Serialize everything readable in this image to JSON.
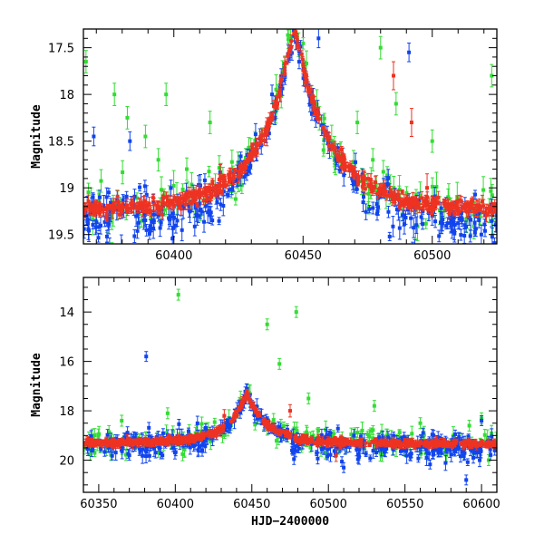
{
  "chart_data": [
    {
      "type": "scatter",
      "panel": "top",
      "xlabel": "",
      "ylabel": "Magnitude",
      "xlim": [
        60365,
        60525
      ],
      "ylim": [
        19.6,
        17.3
      ],
      "y_inverted": true,
      "x_major_ticks": [
        60400,
        60450,
        60500
      ],
      "x_tick_labels": [
        "60400",
        "60450",
        "60500"
      ],
      "y_major_ticks": [
        17.5,
        18,
        18.5,
        19,
        19.5
      ],
      "y_tick_labels": [
        "17.5",
        "18",
        "18.5",
        "19",
        "19.5"
      ],
      "grid": false,
      "legend": "none",
      "peak": {
        "x": 60447,
        "y": 17.5
      },
      "baseline": {
        "left": 19.28,
        "right": 19.25
      },
      "colors": {
        "red": "#ee3322",
        "green": "#33dd33",
        "blue": "#1144ee"
      },
      "outliers": {
        "green": [
          [
            60366,
            17.65
          ],
          [
            60377,
            18.0
          ],
          [
            60382,
            18.25
          ],
          [
            60389,
            18.45
          ],
          [
            60397,
            18.0
          ],
          [
            60405,
            18.8
          ],
          [
            60414,
            18.3
          ],
          [
            60419,
            18.9
          ],
          [
            60471,
            18.3
          ],
          [
            60480,
            17.5
          ],
          [
            60486,
            18.1
          ],
          [
            60500,
            18.5
          ],
          [
            60523,
            17.8
          ],
          [
            60394,
            18.7
          ],
          [
            60477,
            18.7
          ]
        ],
        "blue": [
          [
            60369,
            18.45
          ],
          [
            60383,
            18.5
          ],
          [
            60374,
            19.1
          ],
          [
            60438,
            18.0
          ],
          [
            60456,
            17.4
          ],
          [
            60491,
            17.55
          ],
          [
            60500,
            19.3
          ],
          [
            60519,
            19.5
          ],
          [
            60409,
            19.3
          ]
        ],
        "red": [
          [
            60418,
            18.9
          ],
          [
            60436,
            18.4
          ],
          [
            60485,
            17.8
          ],
          [
            60492,
            18.3
          ],
          [
            60498,
            19.0
          ]
        ]
      }
    },
    {
      "type": "scatter",
      "panel": "bottom",
      "xlabel": "HJD−2400000",
      "ylabel": "Magnitude",
      "xlim": [
        60340,
        60610
      ],
      "ylim": [
        21.3,
        12.6
      ],
      "y_inverted": true,
      "x_major_ticks": [
        60350,
        60400,
        60450,
        60500,
        60550,
        60600
      ],
      "x_tick_labels": [
        "60350",
        "60400",
        "60450",
        "60500",
        "60550",
        "60600"
      ],
      "y_major_ticks": [
        14,
        16,
        18,
        20
      ],
      "y_tick_labels": [
        "14",
        "16",
        "18",
        "20"
      ],
      "grid": false,
      "legend": "none",
      "peak": {
        "x": 60447,
        "y": 17.5
      },
      "baseline": {
        "left": 19.32,
        "right": 19.35
      },
      "colors": {
        "red": "#ee3322",
        "green": "#33dd33",
        "blue": "#1144ee"
      },
      "outliers": {
        "green": [
          [
            60402,
            13.3
          ],
          [
            60460,
            14.5
          ],
          [
            60468,
            16.1
          ],
          [
            60479,
            14.0
          ],
          [
            60365,
            18.4
          ],
          [
            60395,
            18.1
          ],
          [
            60420,
            18.7
          ],
          [
            60487,
            17.5
          ],
          [
            60530,
            17.8
          ],
          [
            60560,
            18.5
          ],
          [
            60592,
            18.6
          ],
          [
            60600,
            18.3
          ]
        ],
        "blue": [
          [
            60381,
            15.8
          ],
          [
            60383,
            19.2
          ],
          [
            60415,
            19.6
          ],
          [
            60510,
            20.3
          ],
          [
            60590,
            20.8
          ],
          [
            60600,
            18.4
          ],
          [
            60370,
            19.8
          ]
        ],
        "red": [
          [
            60432,
            18.2
          ],
          [
            60475,
            18.0
          ],
          [
            60505,
            19.8
          ]
        ]
      }
    }
  ]
}
